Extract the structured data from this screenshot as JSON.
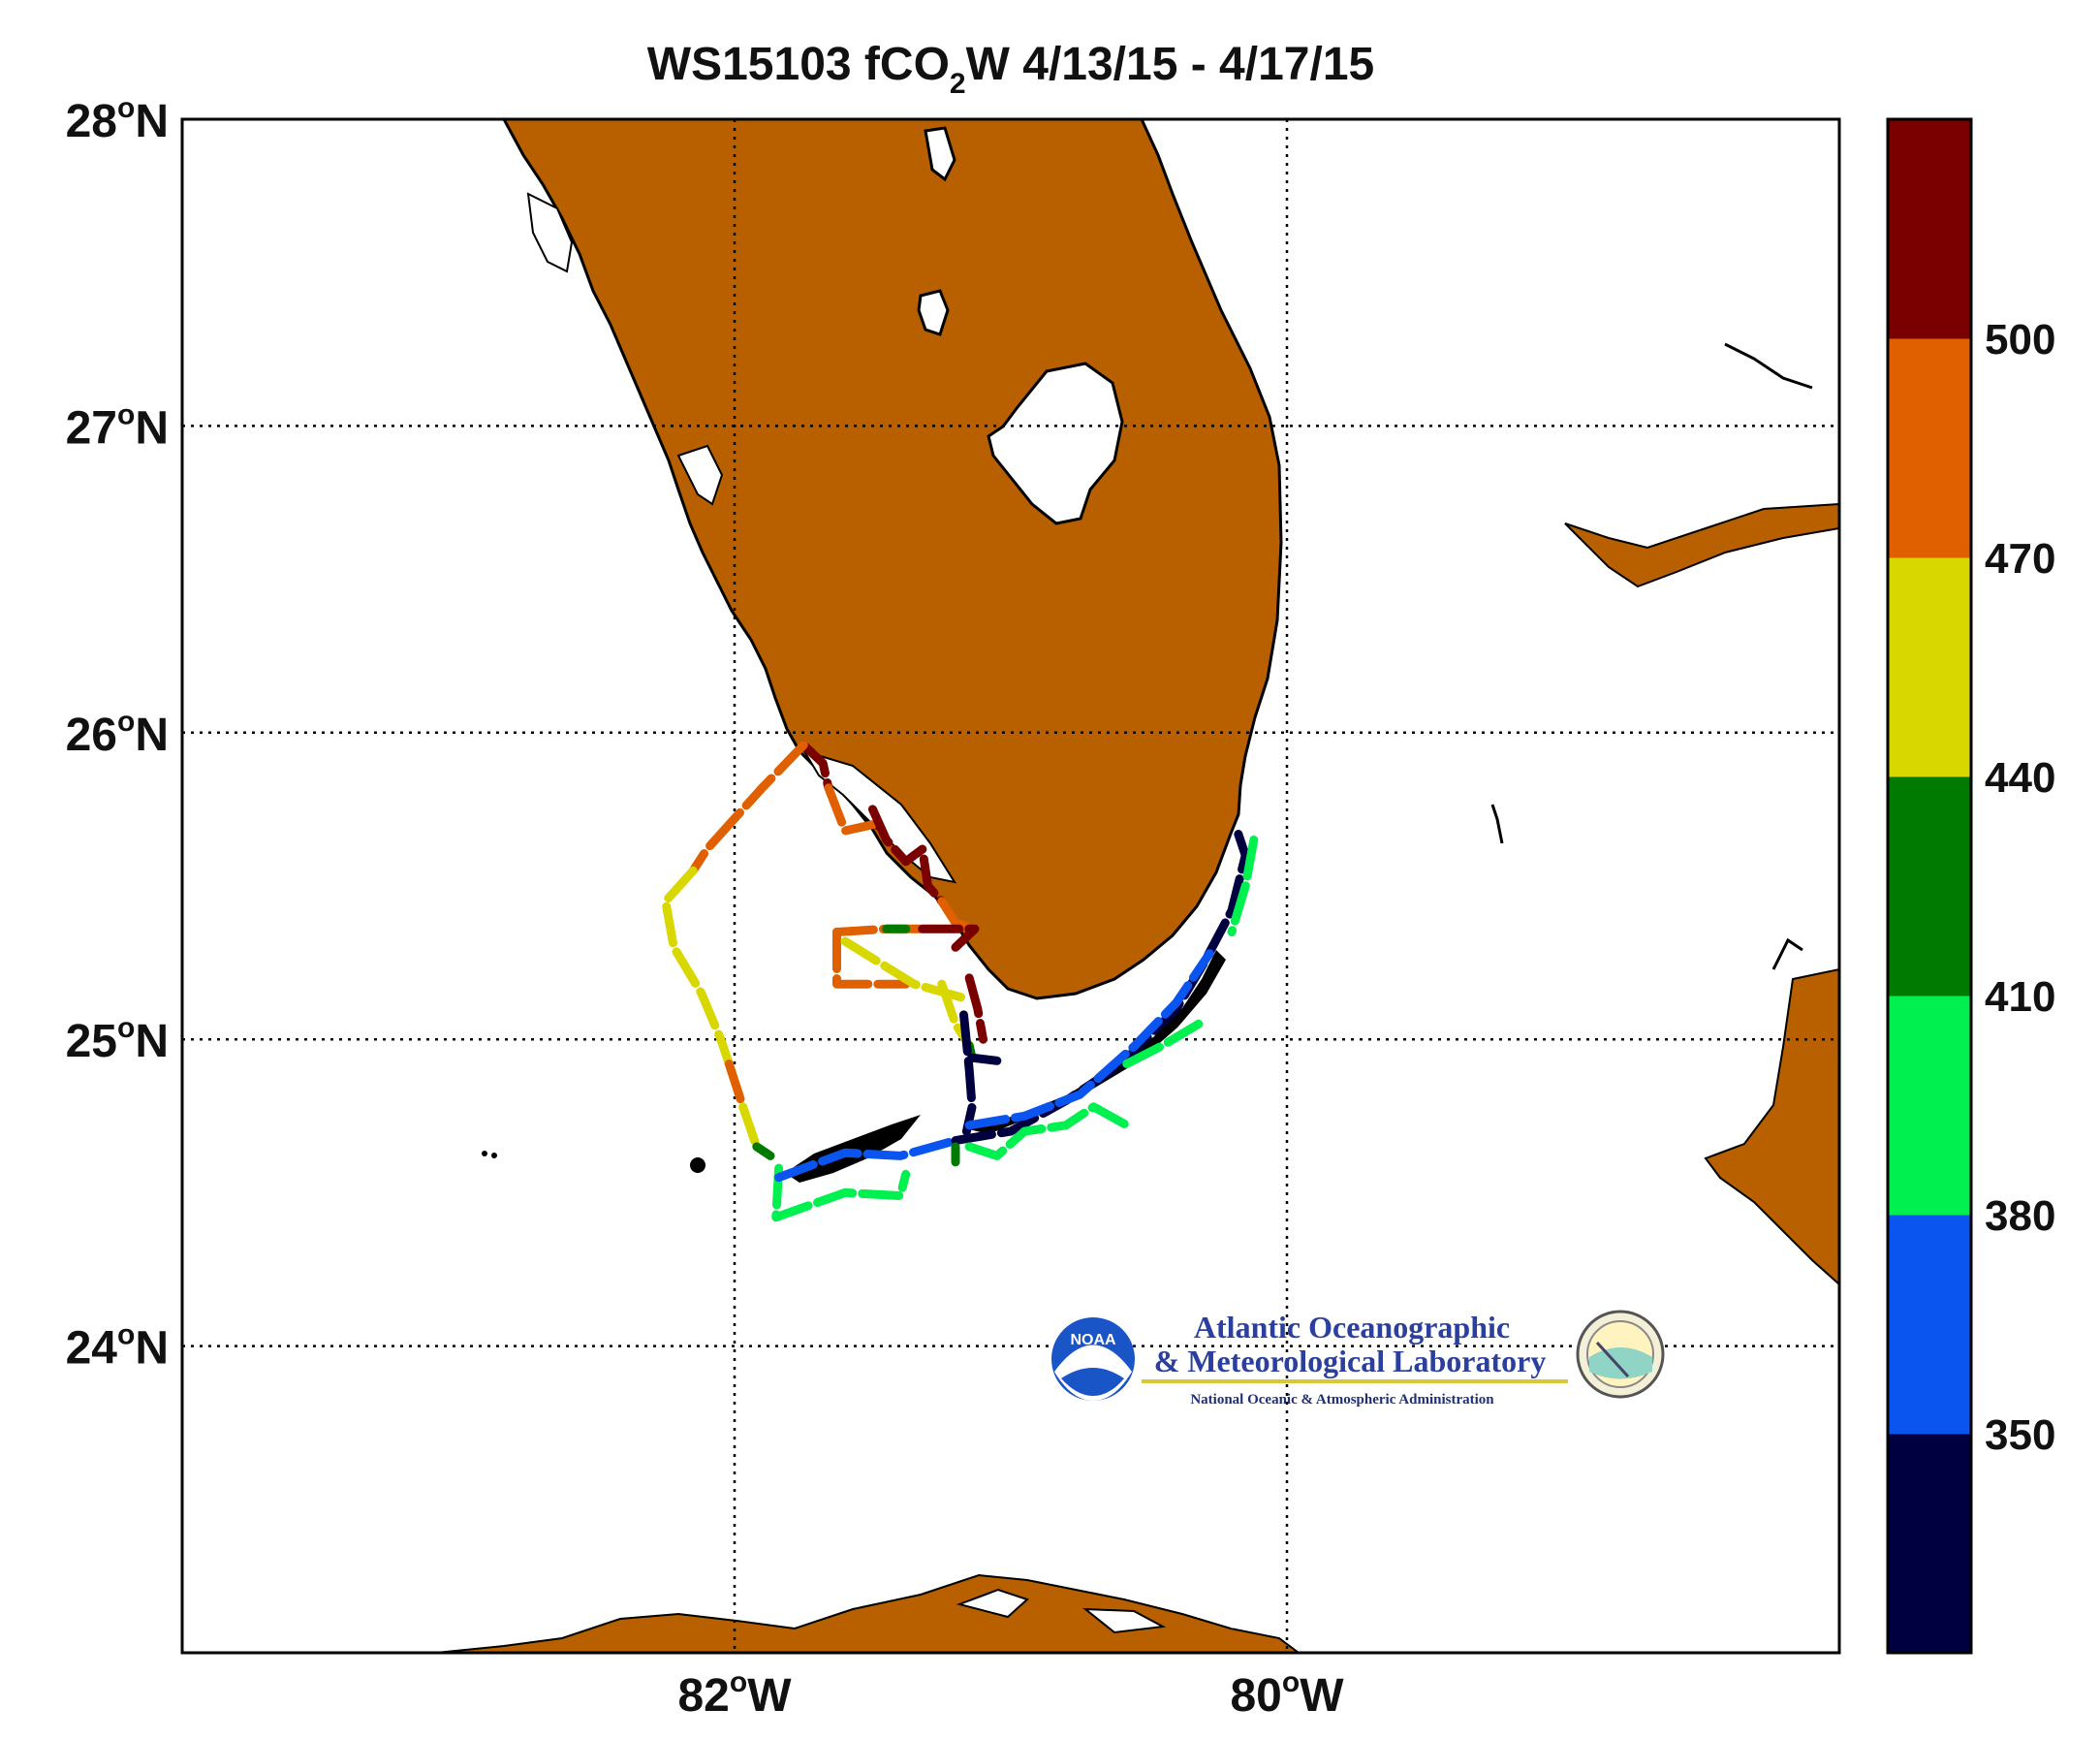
{
  "title": {
    "cruise": "WS15103",
    "variable_prefix": "fCO",
    "variable_sub": "2",
    "variable_suffix": "W",
    "dates": "4/13/15 - 4/17/15"
  },
  "lat_labels": [
    {
      "deg": "28",
      "hemi": "N",
      "lat": 28
    },
    {
      "deg": "27",
      "hemi": "N",
      "lat": 27
    },
    {
      "deg": "26",
      "hemi": "N",
      "lat": 26
    },
    {
      "deg": "25",
      "hemi": "N",
      "lat": 25
    },
    {
      "deg": "24",
      "hemi": "N",
      "lat": 24
    }
  ],
  "lon_labels": [
    {
      "deg": "82",
      "hemi": "W",
      "lon": -82
    },
    {
      "deg": "80",
      "hemi": "W",
      "lon": -80
    }
  ],
  "colorbar": {
    "colors": [
      "#000040",
      "#0a55f0",
      "#00f050",
      "#007a00",
      "#d8d800",
      "#e06000",
      "#7a0000"
    ],
    "tick_labels": [
      "350",
      "380",
      "410",
      "440",
      "470",
      "500"
    ]
  },
  "logo": {
    "emblem_text": "NOAA",
    "line1": "Atlantic Oceanographic",
    "line2": "& Meteorological Laboratory",
    "line3": "National Oceanic & Atmospheric Administration"
  },
  "map": {
    "lon_range": [
      -84,
      -78
    ],
    "lat_range": [
      23,
      28
    ],
    "land_color": "#b86000",
    "grid": true
  },
  "track_segments": [
    {
      "fco2": 500,
      "points": [
        [
          -81.75,
          25.96
        ],
        [
          -81.68,
          25.9
        ],
        [
          -81.66,
          25.82
        ]
      ]
    },
    {
      "fco2": 480,
      "points": [
        [
          -81.75,
          25.96
        ],
        [
          -81.9,
          25.82
        ],
        [
          -82.0,
          25.72
        ]
      ]
    },
    {
      "fco2": 470,
      "points": [
        [
          -82.0,
          25.72
        ],
        [
          -82.1,
          25.62
        ],
        [
          -82.15,
          25.55
        ]
      ]
    },
    {
      "fco2": 450,
      "points": [
        [
          -82.15,
          25.55
        ],
        [
          -82.25,
          25.45
        ],
        [
          -82.22,
          25.3
        ],
        [
          -82.12,
          25.15
        ],
        [
          -82.05,
          25.0
        ],
        [
          -82.02,
          24.92
        ]
      ]
    },
    {
      "fco2": 470,
      "points": [
        [
          -82.02,
          24.92
        ],
        [
          -81.97,
          24.78
        ]
      ]
    },
    {
      "fco2": 450,
      "points": [
        [
          -81.97,
          24.78
        ],
        [
          -81.92,
          24.65
        ]
      ]
    },
    {
      "fco2": 410,
      "points": [
        [
          -81.92,
          24.65
        ],
        [
          -81.87,
          24.62
        ]
      ]
    },
    {
      "fco2": 470,
      "points": [
        [
          -81.66,
          25.82
        ],
        [
          -81.6,
          25.68
        ],
        [
          -81.5,
          25.7
        ]
      ]
    },
    {
      "fco2": 510,
      "points": [
        [
          -81.5,
          25.75
        ],
        [
          -81.45,
          25.65
        ],
        [
          -81.38,
          25.58
        ],
        [
          -81.32,
          25.62
        ],
        [
          -81.3,
          25.5
        ],
        [
          -81.25,
          25.45
        ]
      ]
    },
    {
      "fco2": 480,
      "points": [
        [
          -81.25,
          25.45
        ],
        [
          -81.2,
          25.38
        ],
        [
          -81.13,
          25.36
        ]
      ]
    },
    {
      "fco2": 470,
      "points": [
        [
          -81.63,
          25.35
        ],
        [
          -81.45,
          25.36
        ],
        [
          -81.32,
          25.36
        ]
      ]
    },
    {
      "fco2": 410,
      "points": [
        [
          -81.45,
          25.36
        ],
        [
          -81.38,
          25.36
        ]
      ]
    },
    {
      "fco2": 510,
      "points": [
        [
          -81.32,
          25.36
        ],
        [
          -81.13,
          25.36
        ],
        [
          -81.2,
          25.3
        ]
      ]
    },
    {
      "fco2": 480,
      "points": [
        [
          -81.63,
          25.35
        ],
        [
          -81.63,
          25.18
        ],
        [
          -81.38,
          25.18
        ]
      ]
    },
    {
      "fco2": 450,
      "points": [
        [
          -81.6,
          25.32
        ],
        [
          -81.35,
          25.18
        ],
        [
          -81.15,
          25.13
        ]
      ]
    },
    {
      "fco2": 450,
      "points": [
        [
          -81.25,
          25.18
        ],
        [
          -81.2,
          25.05
        ],
        [
          -81.15,
          24.98
        ]
      ]
    },
    {
      "fco2": 500,
      "points": [
        [
          -81.15,
          25.2
        ],
        [
          -81.12,
          25.1
        ],
        [
          -81.1,
          25.0
        ]
      ]
    },
    {
      "fco2": 410,
      "points": [
        [
          -81.15,
          24.98
        ],
        [
          -81.14,
          24.94
        ]
      ]
    },
    {
      "fco2": 330,
      "points": [
        [
          -81.14,
          24.94
        ],
        [
          -81.05,
          24.93
        ]
      ]
    },
    {
      "fco2": 330,
      "points": [
        [
          -81.17,
          25.08
        ],
        [
          -81.15,
          24.9
        ],
        [
          -81.14,
          24.78
        ],
        [
          -81.16,
          24.7
        ]
      ]
    },
    {
      "fco2": 390,
      "points": [
        [
          -81.84,
          24.58
        ],
        [
          -81.85,
          24.42
        ],
        [
          -81.6,
          24.5
        ],
        [
          -81.4,
          24.49
        ],
        [
          -81.38,
          24.56
        ]
      ]
    },
    {
      "fco2": 360,
      "points": [
        [
          -81.84,
          24.55
        ],
        [
          -81.6,
          24.63
        ],
        [
          -81.4,
          24.62
        ],
        [
          -81.2,
          24.67
        ]
      ]
    },
    {
      "fco2": 330,
      "points": [
        [
          -81.2,
          24.67
        ],
        [
          -81.0,
          24.7
        ],
        [
          -80.8,
          24.8
        ],
        [
          -80.6,
          24.92
        ],
        [
          -80.4,
          25.1
        ],
        [
          -80.3,
          25.25
        ],
        [
          -80.2,
          25.42
        ],
        [
          -80.15,
          25.6
        ],
        [
          -80.18,
          25.68
        ]
      ]
    },
    {
      "fco2": 360,
      "points": [
        [
          -81.15,
          24.72
        ],
        [
          -80.95,
          24.75
        ],
        [
          -80.75,
          24.82
        ],
        [
          -80.55,
          24.98
        ],
        [
          -80.4,
          25.12
        ],
        [
          -80.28,
          25.28
        ]
      ]
    },
    {
      "fco2": 390,
      "points": [
        [
          -81.15,
          24.65
        ],
        [
          -81.05,
          24.62
        ],
        [
          -80.95,
          24.7
        ],
        [
          -80.8,
          24.72
        ],
        [
          -80.7,
          24.78
        ],
        [
          -80.58,
          24.72
        ]
      ]
    },
    {
      "fco2": 390,
      "points": [
        [
          -80.58,
          24.92
        ],
        [
          -80.45,
          24.98
        ],
        [
          -80.32,
          25.05
        ]
      ]
    },
    {
      "fco2": 390,
      "points": [
        [
          -80.12,
          25.65
        ],
        [
          -80.15,
          25.5
        ],
        [
          -80.2,
          25.35
        ]
      ]
    },
    {
      "fco2": 410,
      "points": [
        [
          -81.2,
          24.6
        ],
        [
          -81.2,
          24.65
        ]
      ]
    }
  ]
}
